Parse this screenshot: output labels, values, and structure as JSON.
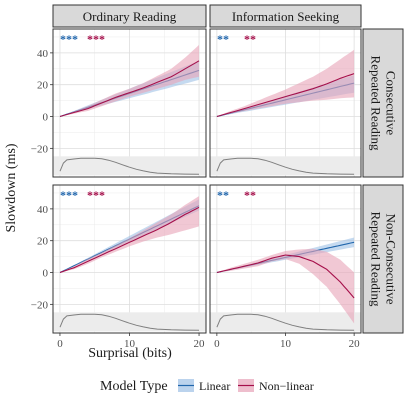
{
  "chart_data": {
    "type": "line",
    "facet_columns": [
      "Ordinary Reading",
      "Information Seeking"
    ],
    "facet_rows": [
      "Consecutive\nRepeated Reading",
      "Non-Consecutive\nRepeated Reading"
    ],
    "xlabel": "Surprisal (bits)",
    "ylabel": "Slowdown (ms)",
    "xlim": [
      -1,
      21
    ],
    "ylim": [
      -38,
      55
    ],
    "xticks": [
      0,
      10,
      20
    ],
    "yticks": [
      -20,
      0,
      20,
      40
    ],
    "grid": true,
    "legend": {
      "title": "Model Type",
      "placement": "bottom",
      "items": [
        {
          "name": "Linear",
          "color": "#2166ac"
        },
        {
          "name": "Non−linear",
          "color": "#a50f4a"
        }
      ]
    },
    "colors": {
      "linear": "#2166ac",
      "linear_ribbon": "#9ec1e6",
      "nonlinear": "#a50f4a",
      "nonlinear_ribbon": "#e7a3b8",
      "density": "#7f7f7f",
      "density_band": "#ececec",
      "strip_bg": "#d9d9d9"
    },
    "panels": [
      {
        "row": 0,
        "col": 0,
        "significance": {
          "linear": "***",
          "nonlinear": "***"
        },
        "series": [
          {
            "name": "Linear",
            "x": [
              0,
              20
            ],
            "y": [
              0,
              29
            ],
            "lower": [
              0,
              23
            ],
            "upper": [
              0,
              35
            ]
          },
          {
            "name": "Non−linear",
            "x": [
              0,
              2,
              4,
              6,
              8,
              10,
              12,
              14,
              16,
              18,
              20
            ],
            "y": [
              0,
              2.5,
              5,
              8.5,
              12,
              15,
              18,
              21.5,
              25,
              30,
              35
            ],
            "lower": [
              0,
              1.8,
              3.5,
              6.5,
              9.5,
              12.5,
              15,
              17.5,
              20,
              23,
              25
            ],
            "upper": [
              0,
              3.2,
              6.5,
              10.5,
              14.5,
              17.5,
              21,
              25.5,
              30,
              37,
              45
            ]
          }
        ],
        "density": {
          "x": [
            0,
            0.5,
            1,
            2,
            3,
            4,
            5,
            6,
            7,
            8,
            9,
            10,
            11,
            12,
            13,
            14,
            16,
            18,
            20
          ],
          "y": [
            0.2,
            0.7,
            0.9,
            0.96,
            1.0,
            1.0,
            1.0,
            0.97,
            0.88,
            0.75,
            0.6,
            0.45,
            0.32,
            0.22,
            0.13,
            0.08,
            0.04,
            0.02,
            0.01
          ]
        }
      },
      {
        "row": 0,
        "col": 1,
        "significance": {
          "linear": "**",
          "nonlinear": "**"
        },
        "series": [
          {
            "name": "Linear",
            "x": [
              0,
              20
            ],
            "y": [
              0,
              21
            ],
            "lower": [
              0,
              15
            ],
            "upper": [
              0,
              26
            ]
          },
          {
            "name": "Non−linear",
            "x": [
              0,
              2,
              4,
              6,
              8,
              10,
              12,
              14,
              16,
              18,
              20
            ],
            "y": [
              0,
              2.5,
              5,
              7.5,
              10,
              12.5,
              15,
              17.5,
              20.5,
              24,
              27
            ],
            "lower": [
              0,
              1.8,
              3.5,
              5,
              6.5,
              8,
              9,
              10,
              10.5,
              11.5,
              12
            ],
            "upper": [
              0,
              3.5,
              6.5,
              10,
              13.5,
              17,
              21,
              25,
              30,
              36,
              42
            ]
          }
        ],
        "density": {
          "x": [
            0,
            0.5,
            1,
            2,
            3,
            4,
            5,
            6,
            7,
            8,
            9,
            10,
            11,
            12,
            13,
            14,
            16,
            18,
            20
          ],
          "y": [
            0.2,
            0.7,
            0.9,
            0.96,
            1.0,
            1.0,
            1.0,
            0.97,
            0.88,
            0.75,
            0.6,
            0.45,
            0.32,
            0.22,
            0.13,
            0.08,
            0.04,
            0.02,
            0.01
          ]
        }
      },
      {
        "row": 1,
        "col": 0,
        "significance": {
          "linear": "***",
          "nonlinear": "***"
        },
        "series": [
          {
            "name": "Linear",
            "x": [
              0,
              20
            ],
            "y": [
              0,
              42
            ],
            "lower": [
              0,
              39
            ],
            "upper": [
              0,
              46
            ]
          },
          {
            "name": "Non−linear",
            "x": [
              0,
              2,
              4,
              6,
              8,
              10,
              12,
              14,
              16,
              18,
              20
            ],
            "y": [
              0,
              3,
              7,
              11,
              15,
              19,
              23,
              27,
              31.5,
              36.5,
              41
            ],
            "lower": [
              0,
              2,
              5.5,
              9.5,
              13,
              16.5,
              19.5,
              22,
              24,
              26.5,
              29
            ],
            "upper": [
              0,
              4,
              8.5,
              12.5,
              17,
              21.5,
              26.5,
              31.5,
              36.5,
              42.5,
              48
            ]
          }
        ],
        "density": {
          "x": [
            0,
            0.5,
            1,
            2,
            3,
            4,
            5,
            6,
            7,
            8,
            9,
            10,
            11,
            12,
            13,
            14,
            16,
            18,
            20
          ],
          "y": [
            0.2,
            0.7,
            0.9,
            0.96,
            1.0,
            1.0,
            1.0,
            0.97,
            0.88,
            0.75,
            0.6,
            0.45,
            0.32,
            0.22,
            0.13,
            0.08,
            0.04,
            0.02,
            0.01
          ]
        }
      },
      {
        "row": 1,
        "col": 1,
        "significance": {
          "linear": "**",
          "nonlinear": "**"
        },
        "series": [
          {
            "name": "Linear",
            "x": [
              0,
              20
            ],
            "y": [
              0,
              19
            ],
            "lower": [
              0,
              16
            ],
            "upper": [
              0,
              22
            ]
          },
          {
            "name": "Non−linear",
            "x": [
              0,
              2,
              4,
              6,
              8,
              10,
              12,
              14,
              16,
              18,
              20
            ],
            "y": [
              0,
              2,
              4,
              6,
              9,
              11,
              10,
              7,
              2,
              -6,
              -16
            ],
            "lower": [
              0,
              1,
              2.5,
              4,
              7,
              8.5,
              5.5,
              -1,
              -9,
              -20,
              -32
            ],
            "upper": [
              0,
              3,
              5.5,
              8,
              11,
              13.5,
              14.5,
              15,
              13,
              8,
              0
            ]
          }
        ],
        "density": {
          "x": [
            0,
            0.5,
            1,
            2,
            3,
            4,
            5,
            6,
            7,
            8,
            9,
            10,
            11,
            12,
            13,
            14,
            16,
            18,
            20
          ],
          "y": [
            0.2,
            0.7,
            0.9,
            0.96,
            1.0,
            1.0,
            1.0,
            0.97,
            0.88,
            0.75,
            0.6,
            0.45,
            0.32,
            0.22,
            0.13,
            0.08,
            0.04,
            0.02,
            0.01
          ]
        }
      }
    ]
  }
}
